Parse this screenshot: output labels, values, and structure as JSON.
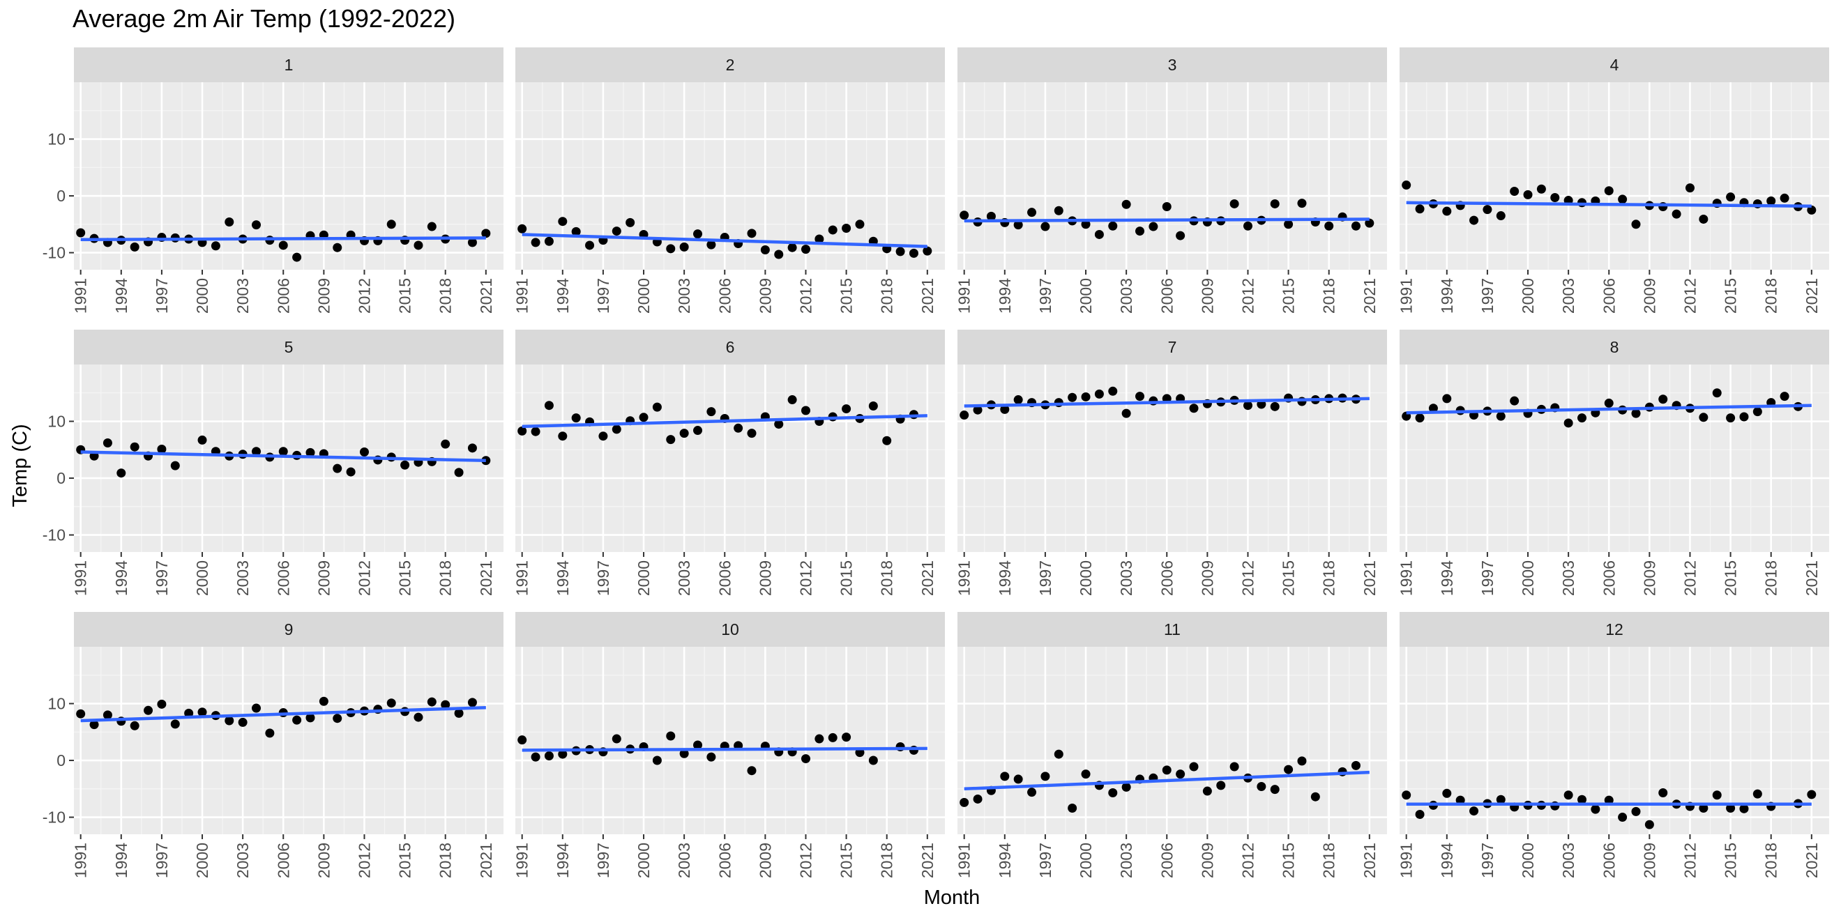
{
  "chart_data": {
    "type": "scatter",
    "title": "Average 2m Air Temp (1992-2022)",
    "xlabel": "Month",
    "ylabel": "Temp (C)",
    "xlim": [
      1990.5,
      2022.3
    ],
    "ylim": [
      -13,
      20
    ],
    "x_ticks": [
      "1991",
      "1994",
      "1997",
      "2000",
      "2003",
      "2006",
      "2009",
      "2012",
      "2015",
      "2018",
      "2021"
    ],
    "y_ticks": [
      "-10",
      "0",
      "10"
    ],
    "facet_layout": {
      "rows": 3,
      "cols": 4
    },
    "colors": {
      "points": "#000000",
      "trend_line": "#3366FF",
      "panel_bg": "#EBEBEB",
      "strip_bg": "#D9D9D9",
      "grid_major": "#FFFFFF"
    },
    "panels": [
      {
        "label": "1",
        "x": [
          1991,
          1992,
          1993,
          1994,
          1995,
          1996,
          1997,
          1998,
          1999,
          2000,
          2001,
          2002,
          2003,
          2004,
          2005,
          2006,
          2007,
          2008,
          2009,
          2010,
          2011,
          2012,
          2013,
          2014,
          2015,
          2016,
          2017,
          2018,
          2019,
          2020,
          2021
        ],
        "y": [
          -6.5,
          -7.5,
          -8.2,
          -7.8,
          -9.0,
          -8.1,
          -7.3,
          -7.4,
          -7.6,
          -8.2,
          -8.8,
          -4.6,
          -7.6,
          -5.1,
          -7.8,
          -8.7,
          -10.8,
          -7.0,
          -6.9,
          -9.1,
          -6.9,
          -7.9,
          -7.9,
          -5.0,
          -7.8,
          -8.7,
          -5.4,
          -7.6,
          null,
          -8.2,
          -6.6
        ],
        "trend": [
          [
            1991,
            -7.7
          ],
          [
            2021,
            -7.4
          ]
        ]
      },
      {
        "label": "2",
        "x": [
          1991,
          1992,
          1993,
          1994,
          1995,
          1996,
          1997,
          1998,
          1999,
          2000,
          2001,
          2002,
          2003,
          2004,
          2005,
          2006,
          2007,
          2008,
          2009,
          2010,
          2011,
          2012,
          2013,
          2014,
          2015,
          2016,
          2017,
          2018,
          2019,
          2020,
          2021
        ],
        "y": [
          -5.8,
          -8.2,
          -8.0,
          -4.5,
          -6.3,
          -8.7,
          -7.8,
          -6.2,
          -4.7,
          -6.8,
          -8.1,
          -9.3,
          -9.0,
          -6.7,
          -8.6,
          -7.3,
          -8.4,
          -6.6,
          -9.5,
          -10.3,
          -9.1,
          -9.4,
          -7.6,
          -6.0,
          -5.7,
          -5.0,
          -8.0,
          -9.3,
          -9.8,
          -10.1,
          -9.7
        ],
        "trend": [
          [
            1991,
            -6.8
          ],
          [
            2021,
            -8.9
          ]
        ]
      },
      {
        "label": "3",
        "x": [
          1991,
          1992,
          1993,
          1994,
          1995,
          1996,
          1997,
          1998,
          1999,
          2000,
          2001,
          2002,
          2003,
          2004,
          2005,
          2006,
          2007,
          2008,
          2009,
          2010,
          2011,
          2012,
          2013,
          2014,
          2015,
          2016,
          2017,
          2018,
          2019,
          2020,
          2021
        ],
        "y": [
          -3.4,
          -4.6,
          -3.6,
          -4.7,
          -5.1,
          -2.9,
          -5.4,
          -2.6,
          -4.4,
          -5.0,
          -6.8,
          -5.3,
          -1.5,
          -6.2,
          -5.4,
          -1.9,
          -7.0,
          -4.4,
          -4.6,
          -4.4,
          -1.4,
          -5.3,
          -4.3,
          -1.4,
          -5.0,
          -1.3,
          -4.6,
          -5.3,
          -3.7,
          -5.3,
          -4.8
        ],
        "trend": [
          [
            1991,
            -4.4
          ],
          [
            2021,
            -4.1
          ]
        ]
      },
      {
        "label": "4",
        "x": [
          1991,
          1992,
          1993,
          1994,
          1995,
          1996,
          1997,
          1998,
          1999,
          2000,
          2001,
          2002,
          2003,
          2004,
          2005,
          2006,
          2007,
          2008,
          2009,
          2010,
          2011,
          2012,
          2013,
          2014,
          2015,
          2016,
          2017,
          2018,
          2019,
          2020,
          2021
        ],
        "y": [
          1.9,
          -2.3,
          -1.4,
          -2.7,
          -1.7,
          -4.3,
          -2.4,
          -3.5,
          0.8,
          0.2,
          1.2,
          -0.3,
          -0.8,
          -1.2,
          -0.9,
          0.9,
          -0.6,
          -5.0,
          -1.7,
          -1.9,
          -3.2,
          1.4,
          -4.1,
          -1.3,
          -0.2,
          -1.2,
          -1.4,
          -0.9,
          -0.4,
          -1.9,
          -2.5
        ],
        "trend": [
          [
            1991,
            -1.2
          ],
          [
            2021,
            -1.8
          ]
        ]
      },
      {
        "label": "5",
        "x": [
          1991,
          1992,
          1993,
          1994,
          1995,
          1996,
          1997,
          1998,
          1999,
          2000,
          2001,
          2002,
          2003,
          2004,
          2005,
          2006,
          2007,
          2008,
          2009,
          2010,
          2011,
          2012,
          2013,
          2014,
          2015,
          2016,
          2017,
          2018,
          2019,
          2020,
          2021
        ],
        "y": [
          5.0,
          3.9,
          6.2,
          0.9,
          5.5,
          3.9,
          5.1,
          2.2,
          null,
          6.7,
          4.7,
          3.9,
          4.2,
          4.7,
          3.7,
          4.7,
          4.0,
          4.5,
          4.3,
          1.7,
          1.1,
          4.6,
          3.2,
          3.7,
          2.3,
          2.8,
          2.9,
          6.0,
          1.0,
          5.3,
          3.1
        ],
        "trend": [
          [
            1991,
            4.6
          ],
          [
            2021,
            3.1
          ]
        ]
      },
      {
        "label": "6",
        "x": [
          1991,
          1992,
          1993,
          1994,
          1995,
          1996,
          1997,
          1998,
          1999,
          2000,
          2001,
          2002,
          2003,
          2004,
          2005,
          2006,
          2007,
          2008,
          2009,
          2010,
          2011,
          2012,
          2013,
          2014,
          2015,
          2016,
          2017,
          2018,
          2019,
          2020,
          2021
        ],
        "y": [
          8.3,
          8.2,
          12.8,
          7.4,
          10.6,
          9.9,
          7.4,
          8.6,
          10.1,
          10.7,
          12.5,
          6.8,
          7.9,
          8.4,
          11.7,
          10.5,
          8.8,
          7.9,
          10.8,
          9.5,
          13.8,
          11.9,
          10.0,
          10.8,
          12.2,
          10.5,
          12.7,
          6.6,
          10.4,
          11.2,
          null
        ],
        "trend": [
          [
            1991,
            9.1
          ],
          [
            2021,
            11.0
          ]
        ]
      },
      {
        "label": "7",
        "x": [
          1991,
          1992,
          1993,
          1994,
          1995,
          1996,
          1997,
          1998,
          1999,
          2000,
          2001,
          2002,
          2003,
          2004,
          2005,
          2006,
          2007,
          2008,
          2009,
          2010,
          2011,
          2012,
          2013,
          2014,
          2015,
          2016,
          2017,
          2018,
          2019,
          2020,
          2021
        ],
        "y": [
          11.1,
          12.0,
          12.9,
          12.1,
          13.8,
          13.3,
          12.9,
          13.3,
          14.2,
          14.3,
          14.8,
          15.3,
          11.4,
          14.4,
          13.6,
          14.0,
          14.0,
          12.3,
          13.1,
          13.4,
          13.7,
          12.8,
          13.0,
          12.6,
          14.1,
          13.5,
          13.8,
          14.0,
          14.1,
          13.9,
          null
        ],
        "trend": [
          [
            1991,
            12.7
          ],
          [
            2021,
            14.0
          ]
        ]
      },
      {
        "label": "8",
        "x": [
          1991,
          1992,
          1993,
          1994,
          1995,
          1996,
          1997,
          1998,
          1999,
          2000,
          2001,
          2002,
          2003,
          2004,
          2005,
          2006,
          2007,
          2008,
          2009,
          2010,
          2011,
          2012,
          2013,
          2014,
          2015,
          2016,
          2017,
          2018,
          2019,
          2020,
          2021
        ],
        "y": [
          10.9,
          10.6,
          12.3,
          14.0,
          11.9,
          11.1,
          11.8,
          10.9,
          13.6,
          11.4,
          12.1,
          12.4,
          9.7,
          10.6,
          11.5,
          13.2,
          12.0,
          11.4,
          12.5,
          13.9,
          12.8,
          12.3,
          10.7,
          15.0,
          10.6,
          10.8,
          11.7,
          13.3,
          14.4,
          12.6,
          null
        ],
        "trend": [
          [
            1991,
            11.5
          ],
          [
            2021,
            12.8
          ]
        ]
      },
      {
        "label": "9",
        "x": [
          1991,
          1992,
          1993,
          1994,
          1995,
          1996,
          1997,
          1998,
          1999,
          2000,
          2001,
          2002,
          2003,
          2004,
          2005,
          2006,
          2007,
          2008,
          2009,
          2010,
          2011,
          2012,
          2013,
          2014,
          2015,
          2016,
          2017,
          2018,
          2019,
          2020,
          2021
        ],
        "y": [
          8.2,
          6.3,
          8.0,
          6.9,
          6.1,
          8.8,
          9.9,
          6.4,
          8.3,
          8.5,
          7.9,
          7.0,
          6.7,
          9.2,
          4.8,
          8.4,
          7.1,
          7.5,
          10.4,
          7.4,
          8.4,
          8.7,
          9.0,
          10.1,
          8.6,
          7.6,
          10.3,
          9.8,
          8.3,
          10.2,
          null
        ],
        "trend": [
          [
            1991,
            7.0
          ],
          [
            2021,
            9.3
          ]
        ]
      },
      {
        "label": "10",
        "x": [
          1991,
          1992,
          1993,
          1994,
          1995,
          1996,
          1997,
          1998,
          1999,
          2000,
          2001,
          2002,
          2003,
          2004,
          2005,
          2006,
          2007,
          2008,
          2009,
          2010,
          2011,
          2012,
          2013,
          2014,
          2015,
          2016,
          2017,
          2018,
          2019,
          2020,
          2021
        ],
        "y": [
          3.6,
          0.6,
          0.8,
          1.1,
          1.7,
          1.9,
          1.5,
          3.8,
          2.0,
          2.4,
          0.0,
          4.3,
          1.2,
          2.7,
          0.6,
          2.5,
          2.6,
          -1.8,
          2.5,
          1.5,
          1.5,
          0.3,
          3.8,
          4.0,
          4.1,
          1.4,
          0.0,
          null,
          2.4,
          1.8,
          null
        ],
        "trend": [
          [
            1991,
            1.8
          ],
          [
            2021,
            2.1
          ]
        ]
      },
      {
        "label": "11",
        "x": [
          1991,
          1992,
          1993,
          1994,
          1995,
          1996,
          1997,
          1998,
          1999,
          2000,
          2001,
          2002,
          2003,
          2004,
          2005,
          2006,
          2007,
          2008,
          2009,
          2010,
          2011,
          2012,
          2013,
          2014,
          2015,
          2016,
          2017,
          2018,
          2019,
          2020,
          2021
        ],
        "y": [
          -7.4,
          -6.8,
          -5.3,
          -2.8,
          -3.3,
          -5.6,
          -2.8,
          1.1,
          -8.4,
          -2.4,
          -4.4,
          -5.7,
          -4.7,
          -3.3,
          -3.1,
          -1.7,
          -2.4,
          -1.1,
          -5.4,
          -4.4,
          -1.1,
          -3.1,
          -4.6,
          -5.1,
          -1.6,
          -0.1,
          -6.4,
          null,
          -2.0,
          -0.9,
          null
        ],
        "trend": [
          [
            1991,
            -5.0
          ],
          [
            2021,
            -2.1
          ]
        ]
      },
      {
        "label": "12",
        "x": [
          1991,
          1992,
          1993,
          1994,
          1995,
          1996,
          1997,
          1998,
          1999,
          2000,
          2001,
          2002,
          2003,
          2004,
          2005,
          2006,
          2007,
          2008,
          2009,
          2010,
          2011,
          2012,
          2013,
          2014,
          2015,
          2016,
          2017,
          2018,
          2019,
          2020,
          2021
        ],
        "y": [
          -6.1,
          -9.5,
          -7.9,
          -5.8,
          -7.0,
          -8.9,
          -7.6,
          -6.9,
          -8.2,
          -7.9,
          -7.9,
          -8.0,
          -6.1,
          -6.9,
          -8.6,
          -7.0,
          -10.0,
          -9.0,
          -11.3,
          -5.7,
          -7.7,
          -8.1,
          -8.4,
          -6.1,
          -8.4,
          -8.5,
          -5.9,
          -8.1,
          null,
          -7.6,
          -6.0
        ],
        "trend": [
          [
            1991,
            -7.7
          ],
          [
            2021,
            -7.7
          ]
        ]
      }
    ]
  }
}
